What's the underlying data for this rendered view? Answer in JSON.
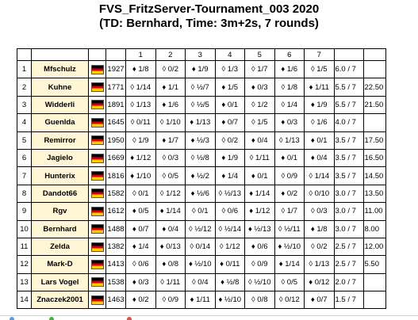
{
  "header": {
    "title": "FVS_FritzServer-Tournament_003 2020",
    "subtitle": "(TD: Bernhard, Time: 3m+2s, 7 rounds)"
  },
  "table": {
    "rounds": [
      "1",
      "2",
      "3",
      "4",
      "5",
      "6",
      "7"
    ],
    "rows": [
      {
        "no": "1",
        "name": "Mfschulz",
        "elo": "1927",
        "games": [
          "♦ 1/8",
          "◊ 0/2",
          "♦ 1/9",
          "◊ 1/3",
          "◊ 1/7",
          "♦ 1/6",
          "◊ 1/5"
        ],
        "points": "6.0 / 7",
        "tb": ""
      },
      {
        "no": "2",
        "name": "Kuhne",
        "elo": "1771",
        "games": [
          "◊ 1/14",
          "♦ 1/1",
          "◊ ½/7",
          "♦ 1/5",
          "♦ 0/3",
          "◊ 1/8",
          "♦ 1/11"
        ],
        "points": "5.5 / 7",
        "tb": "22.50"
      },
      {
        "no": "3",
        "name": "Widderli",
        "elo": "1891",
        "games": [
          "◊ 1/13",
          "♦ 1/6",
          "◊ ½/5",
          "♦ 0/1",
          "◊ 1/2",
          "◊ 1/4",
          "♦ 1/9"
        ],
        "points": "5.5 / 7",
        "tb": "21.50"
      },
      {
        "no": "4",
        "name": "Guenlda",
        "elo": "1645",
        "games": [
          "◊ 0/11",
          "◊ 1/10",
          "♦ 1/13",
          "♦ 0/7",
          "◊ 1/5",
          "♦ 0/3",
          "◊ 1/6"
        ],
        "points": "4.0 / 7",
        "tb": ""
      },
      {
        "no": "5",
        "name": "Remirror",
        "elo": "1950",
        "games": [
          "◊ 1/9",
          "♦ 1/7",
          "♦ ½/3",
          "◊ 0/2",
          "♦ 0/4",
          "◊ 1/13",
          "♦ 0/1"
        ],
        "points": "3.5 / 7",
        "tb": "17.50"
      },
      {
        "no": "6",
        "name": "Jagielo",
        "elo": "1669",
        "games": [
          "♦ 1/12",
          "◊ 0/3",
          "◊ ½/8",
          "♦ 1/9",
          "◊ 1/11",
          "♦ 0/1",
          "♦ 0/4"
        ],
        "points": "3.5 / 7",
        "tb": "16.50"
      },
      {
        "no": "7",
        "name": "Hunterix",
        "elo": "1816",
        "games": [
          "♦ 1/10",
          "◊ 0/5",
          "♦ ½/2",
          "♦ 1/4",
          "♦ 0/1",
          "◊ 0/9",
          "◊ 1/14"
        ],
        "points": "3.5 / 7",
        "tb": "14.50"
      },
      {
        "no": "8",
        "name": "Dandot66",
        "elo": "1582",
        "games": [
          "◊ 0/1",
          "◊ 1/12",
          "♦ ½/6",
          "◊ ½/13",
          "♦ 1/14",
          "♦ 0/2",
          "◊ 0/10"
        ],
        "points": "3.0 / 7",
        "tb": "13.50"
      },
      {
        "no": "9",
        "name": "Rgv",
        "elo": "1612",
        "games": [
          "♦ 0/5",
          "♦ 1/14",
          "◊ 0/1",
          "◊ 0/6",
          "♦ 1/12",
          "◊ 1/7",
          "◊ 0/3"
        ],
        "points": "3.0 / 7",
        "tb": "11.00"
      },
      {
        "no": "10",
        "name": "Bernhard",
        "elo": "1488",
        "games": [
          "♦ 0/7",
          "♦ 0/4",
          "◊ ½/12",
          "◊ ½/14",
          "♦ ½/13",
          "◊ ½/11",
          "♦ 1/8"
        ],
        "points": "3.0 / 7",
        "tb": "8.00"
      },
      {
        "no": "11",
        "name": "Zelda",
        "elo": "1382",
        "games": [
          "♦ 1/4",
          "♦ 0/13",
          "◊ 0/14",
          "◊ 1/12",
          "♦ 0/6",
          "♦ ½/10",
          "◊ 0/2"
        ],
        "points": "2.5 / 7",
        "tb": "12.00"
      },
      {
        "no": "12",
        "name": "Mark-D",
        "elo": "1413",
        "games": [
          "◊ 0/6",
          "♦ 0/8",
          "♦ ½/10",
          "♦ 0/11",
          "◊ 0/9",
          "♦ 1/14",
          "◊ 1/13"
        ],
        "points": "2.5 / 7",
        "tb": "5.50"
      },
      {
        "no": "13",
        "name": "Lars Vogel",
        "elo": "1538",
        "games": [
          "♦ 0/3",
          "◊ 1/11",
          "◊ 0/4",
          "♦ ½/8",
          "◊ ½/10",
          "◊ 0/5",
          "♦ 0/12"
        ],
        "points": "2.0 / 7",
        "tb": ""
      },
      {
        "no": "14",
        "name": "Znaczek2001",
        "elo": "1463",
        "games": [
          "♦ 0/2",
          "◊ 0/9",
          "♦ 1/11",
          "♦ ½/10",
          "◊ 0/8",
          "◊ 0/12",
          "♦ 0/7"
        ],
        "points": "1.5 / 7",
        "tb": ""
      }
    ]
  },
  "colors": {
    "name_cell_bg": "#fff6d6",
    "flag": [
      "#000000",
      "#dd0000",
      "#ffce00"
    ]
  },
  "icons": {
    "flag": "germany-flag-icon"
  }
}
